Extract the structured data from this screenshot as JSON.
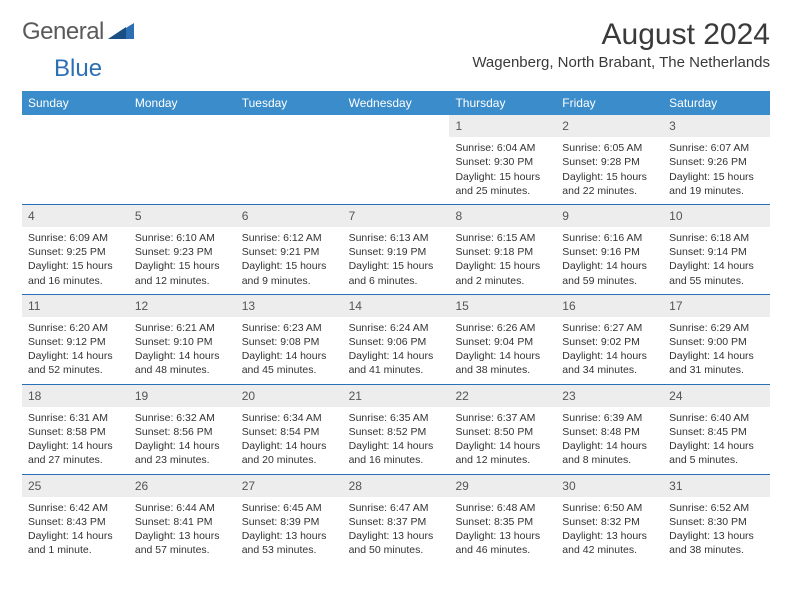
{
  "logo": {
    "text1": "General",
    "text2": "Blue"
  },
  "title": "August 2024",
  "location": "Wagenberg, North Brabant, The Netherlands",
  "colors": {
    "header_bg": "#3a8cca",
    "header_text": "#ffffff",
    "week_border": "#2d6fb5",
    "date_bg": "#ededed",
    "body_text": "#333333"
  },
  "day_names": [
    "Sunday",
    "Monday",
    "Tuesday",
    "Wednesday",
    "Thursday",
    "Friday",
    "Saturday"
  ],
  "weeks": [
    [
      null,
      null,
      null,
      null,
      {
        "n": "1",
        "sr": "6:04 AM",
        "ss": "9:30 PM",
        "dl": "15 hours and 25 minutes."
      },
      {
        "n": "2",
        "sr": "6:05 AM",
        "ss": "9:28 PM",
        "dl": "15 hours and 22 minutes."
      },
      {
        "n": "3",
        "sr": "6:07 AM",
        "ss": "9:26 PM",
        "dl": "15 hours and 19 minutes."
      }
    ],
    [
      {
        "n": "4",
        "sr": "6:09 AM",
        "ss": "9:25 PM",
        "dl": "15 hours and 16 minutes."
      },
      {
        "n": "5",
        "sr": "6:10 AM",
        "ss": "9:23 PM",
        "dl": "15 hours and 12 minutes."
      },
      {
        "n": "6",
        "sr": "6:12 AM",
        "ss": "9:21 PM",
        "dl": "15 hours and 9 minutes."
      },
      {
        "n": "7",
        "sr": "6:13 AM",
        "ss": "9:19 PM",
        "dl": "15 hours and 6 minutes."
      },
      {
        "n": "8",
        "sr": "6:15 AM",
        "ss": "9:18 PM",
        "dl": "15 hours and 2 minutes."
      },
      {
        "n": "9",
        "sr": "6:16 AM",
        "ss": "9:16 PM",
        "dl": "14 hours and 59 minutes."
      },
      {
        "n": "10",
        "sr": "6:18 AM",
        "ss": "9:14 PM",
        "dl": "14 hours and 55 minutes."
      }
    ],
    [
      {
        "n": "11",
        "sr": "6:20 AM",
        "ss": "9:12 PM",
        "dl": "14 hours and 52 minutes."
      },
      {
        "n": "12",
        "sr": "6:21 AM",
        "ss": "9:10 PM",
        "dl": "14 hours and 48 minutes."
      },
      {
        "n": "13",
        "sr": "6:23 AM",
        "ss": "9:08 PM",
        "dl": "14 hours and 45 minutes."
      },
      {
        "n": "14",
        "sr": "6:24 AM",
        "ss": "9:06 PM",
        "dl": "14 hours and 41 minutes."
      },
      {
        "n": "15",
        "sr": "6:26 AM",
        "ss": "9:04 PM",
        "dl": "14 hours and 38 minutes."
      },
      {
        "n": "16",
        "sr": "6:27 AM",
        "ss": "9:02 PM",
        "dl": "14 hours and 34 minutes."
      },
      {
        "n": "17",
        "sr": "6:29 AM",
        "ss": "9:00 PM",
        "dl": "14 hours and 31 minutes."
      }
    ],
    [
      {
        "n": "18",
        "sr": "6:31 AM",
        "ss": "8:58 PM",
        "dl": "14 hours and 27 minutes."
      },
      {
        "n": "19",
        "sr": "6:32 AM",
        "ss": "8:56 PM",
        "dl": "14 hours and 23 minutes."
      },
      {
        "n": "20",
        "sr": "6:34 AM",
        "ss": "8:54 PM",
        "dl": "14 hours and 20 minutes."
      },
      {
        "n": "21",
        "sr": "6:35 AM",
        "ss": "8:52 PM",
        "dl": "14 hours and 16 minutes."
      },
      {
        "n": "22",
        "sr": "6:37 AM",
        "ss": "8:50 PM",
        "dl": "14 hours and 12 minutes."
      },
      {
        "n": "23",
        "sr": "6:39 AM",
        "ss": "8:48 PM",
        "dl": "14 hours and 8 minutes."
      },
      {
        "n": "24",
        "sr": "6:40 AM",
        "ss": "8:45 PM",
        "dl": "14 hours and 5 minutes."
      }
    ],
    [
      {
        "n": "25",
        "sr": "6:42 AM",
        "ss": "8:43 PM",
        "dl": "14 hours and 1 minute."
      },
      {
        "n": "26",
        "sr": "6:44 AM",
        "ss": "8:41 PM",
        "dl": "13 hours and 57 minutes."
      },
      {
        "n": "27",
        "sr": "6:45 AM",
        "ss": "8:39 PM",
        "dl": "13 hours and 53 minutes."
      },
      {
        "n": "28",
        "sr": "6:47 AM",
        "ss": "8:37 PM",
        "dl": "13 hours and 50 minutes."
      },
      {
        "n": "29",
        "sr": "6:48 AM",
        "ss": "8:35 PM",
        "dl": "13 hours and 46 minutes."
      },
      {
        "n": "30",
        "sr": "6:50 AM",
        "ss": "8:32 PM",
        "dl": "13 hours and 42 minutes."
      },
      {
        "n": "31",
        "sr": "6:52 AM",
        "ss": "8:30 PM",
        "dl": "13 hours and 38 minutes."
      }
    ]
  ],
  "labels": {
    "sunrise": "Sunrise: ",
    "sunset": "Sunset: ",
    "daylight": "Daylight: "
  }
}
